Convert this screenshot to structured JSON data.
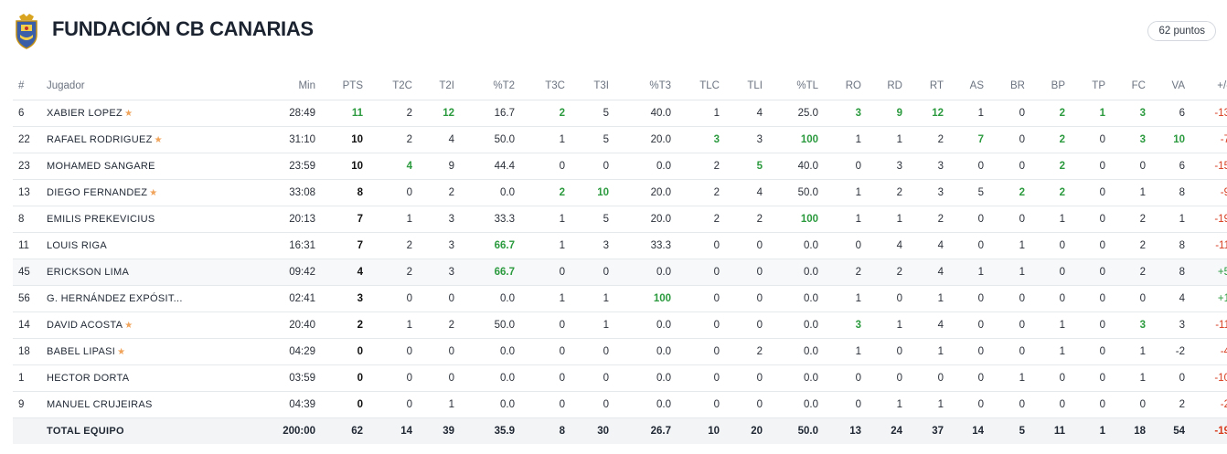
{
  "team": {
    "name": "FUNDACIÓN CB CANARIAS",
    "points_badge": "62 puntos"
  },
  "colors": {
    "positive": "#2b9a3e",
    "negative": "#d73a1c",
    "star": "#f0a35a"
  },
  "icons": {
    "crest": "team-crest-icon",
    "captain": "star-icon"
  },
  "columns": [
    "#",
    "Jugador",
    "Min",
    "PTS",
    "T2C",
    "T2I",
    "%T2",
    "T3C",
    "T3I",
    "%T3",
    "TLC",
    "TLI",
    "%TL",
    "RO",
    "RD",
    "RT",
    "AS",
    "BR",
    "BP",
    "TP",
    "FC",
    "VA",
    "+/-"
  ],
  "players": [
    {
      "num": "6",
      "name": "XABIER LOPEZ",
      "star": true,
      "min": "28:49",
      "pts": "11",
      "t2c": "2",
      "t2i": "12",
      "p2": "16.7",
      "t3c": "2",
      "t3i": "5",
      "p3": "40.0",
      "tlc": "1",
      "tli": "4",
      "ptl": "25.0",
      "ro": "3",
      "rd": "9",
      "rt": "12",
      "as": "1",
      "br": "0",
      "bp": "2",
      "tp": "1",
      "fc": "3",
      "va": "6",
      "pm": "-13",
      "hi": [
        "pts",
        "t2i",
        "t3c",
        "ro",
        "rd",
        "rt",
        "bp",
        "tp",
        "fc"
      ]
    },
    {
      "num": "22",
      "name": "RAFAEL RODRIGUEZ",
      "star": true,
      "min": "31:10",
      "pts": "10",
      "t2c": "2",
      "t2i": "4",
      "p2": "50.0",
      "t3c": "1",
      "t3i": "5",
      "p3": "20.0",
      "tlc": "3",
      "tli": "3",
      "ptl": "100",
      "ro": "1",
      "rd": "1",
      "rt": "2",
      "as": "7",
      "br": "0",
      "bp": "2",
      "tp": "0",
      "fc": "3",
      "va": "10",
      "pm": "-7",
      "hi": [
        "tlc",
        "ptl",
        "as",
        "bp",
        "fc",
        "va"
      ]
    },
    {
      "num": "23",
      "name": "MOHAMED SANGARE",
      "star": false,
      "min": "23:59",
      "pts": "10",
      "t2c": "4",
      "t2i": "9",
      "p2": "44.4",
      "t3c": "0",
      "t3i": "0",
      "p3": "0.0",
      "tlc": "2",
      "tli": "5",
      "ptl": "40.0",
      "ro": "0",
      "rd": "3",
      "rt": "3",
      "as": "0",
      "br": "0",
      "bp": "2",
      "tp": "0",
      "fc": "0",
      "va": "6",
      "pm": "-15",
      "hi": [
        "t2c",
        "tli",
        "bp"
      ]
    },
    {
      "num": "13",
      "name": "DIEGO FERNANDEZ",
      "star": true,
      "min": "33:08",
      "pts": "8",
      "t2c": "0",
      "t2i": "2",
      "p2": "0.0",
      "t3c": "2",
      "t3i": "10",
      "p3": "20.0",
      "tlc": "2",
      "tli": "4",
      "ptl": "50.0",
      "ro": "1",
      "rd": "2",
      "rt": "3",
      "as": "5",
      "br": "2",
      "bp": "2",
      "tp": "0",
      "fc": "1",
      "va": "8",
      "pm": "-9",
      "hi": [
        "t3c",
        "t3i",
        "br",
        "bp"
      ]
    },
    {
      "num": "8",
      "name": "EMILIS PREKEVICIUS",
      "star": false,
      "min": "20:13",
      "pts": "7",
      "t2c": "1",
      "t2i": "3",
      "p2": "33.3",
      "t3c": "1",
      "t3i": "5",
      "p3": "20.0",
      "tlc": "2",
      "tli": "2",
      "ptl": "100",
      "ro": "1",
      "rd": "1",
      "rt": "2",
      "as": "0",
      "br": "0",
      "bp": "1",
      "tp": "0",
      "fc": "2",
      "va": "1",
      "pm": "-19",
      "hi": [
        "ptl"
      ]
    },
    {
      "num": "11",
      "name": "LOUIS RIGA",
      "star": false,
      "min": "16:31",
      "pts": "7",
      "t2c": "2",
      "t2i": "3",
      "p2": "66.7",
      "t3c": "1",
      "t3i": "3",
      "p3": "33.3",
      "tlc": "0",
      "tli": "0",
      "ptl": "0.0",
      "ro": "0",
      "rd": "4",
      "rt": "4",
      "as": "0",
      "br": "1",
      "bp": "0",
      "tp": "0",
      "fc": "2",
      "va": "8",
      "pm": "-11",
      "hi": [
        "p2"
      ]
    },
    {
      "num": "45",
      "name": "ERICKSON LIMA",
      "star": false,
      "min": "09:42",
      "pts": "4",
      "t2c": "2",
      "t2i": "3",
      "p2": "66.7",
      "t3c": "0",
      "t3i": "0",
      "p3": "0.0",
      "tlc": "0",
      "tli": "0",
      "ptl": "0.0",
      "ro": "2",
      "rd": "2",
      "rt": "4",
      "as": "1",
      "br": "1",
      "bp": "0",
      "tp": "0",
      "fc": "2",
      "va": "8",
      "pm": "+5",
      "hi": [
        "p2"
      ],
      "alt": true
    },
    {
      "num": "56",
      "name": "G. HERNÁNDEZ EXPÓSIT...",
      "star": false,
      "min": "02:41",
      "pts": "3",
      "t2c": "0",
      "t2i": "0",
      "p2": "0.0",
      "t3c": "1",
      "t3i": "1",
      "p3": "100",
      "tlc": "0",
      "tli": "0",
      "ptl": "0.0",
      "ro": "1",
      "rd": "0",
      "rt": "1",
      "as": "0",
      "br": "0",
      "bp": "0",
      "tp": "0",
      "fc": "0",
      "va": "4",
      "pm": "+1",
      "hi": [
        "p3"
      ]
    },
    {
      "num": "14",
      "name": "DAVID ACOSTA",
      "star": true,
      "min": "20:40",
      "pts": "2",
      "t2c": "1",
      "t2i": "2",
      "p2": "50.0",
      "t3c": "0",
      "t3i": "1",
      "p3": "0.0",
      "tlc": "0",
      "tli": "0",
      "ptl": "0.0",
      "ro": "3",
      "rd": "1",
      "rt": "4",
      "as": "0",
      "br": "0",
      "bp": "1",
      "tp": "0",
      "fc": "3",
      "va": "3",
      "pm": "-11",
      "hi": [
        "ro",
        "fc"
      ]
    },
    {
      "num": "18",
      "name": "BABEL LIPASI",
      "star": true,
      "min": "04:29",
      "pts": "0",
      "t2c": "0",
      "t2i": "0",
      "p2": "0.0",
      "t3c": "0",
      "t3i": "0",
      "p3": "0.0",
      "tlc": "0",
      "tli": "2",
      "ptl": "0.0",
      "ro": "1",
      "rd": "0",
      "rt": "1",
      "as": "0",
      "br": "0",
      "bp": "1",
      "tp": "0",
      "fc": "1",
      "va": "-2",
      "pm": "-4",
      "hi": []
    },
    {
      "num": "1",
      "name": "HECTOR DORTA",
      "star": false,
      "min": "03:59",
      "pts": "0",
      "t2c": "0",
      "t2i": "0",
      "p2": "0.0",
      "t3c": "0",
      "t3i": "0",
      "p3": "0.0",
      "tlc": "0",
      "tli": "0",
      "ptl": "0.0",
      "ro": "0",
      "rd": "0",
      "rt": "0",
      "as": "0",
      "br": "1",
      "bp": "0",
      "tp": "0",
      "fc": "1",
      "va": "0",
      "pm": "-10",
      "hi": []
    },
    {
      "num": "9",
      "name": "MANUEL CRUJEIRAS",
      "star": false,
      "min": "04:39",
      "pts": "0",
      "t2c": "0",
      "t2i": "1",
      "p2": "0.0",
      "t3c": "0",
      "t3i": "0",
      "p3": "0.0",
      "tlc": "0",
      "tli": "0",
      "ptl": "0.0",
      "ro": "0",
      "rd": "1",
      "rt": "1",
      "as": "0",
      "br": "0",
      "bp": "0",
      "tp": "0",
      "fc": "0",
      "va": "2",
      "pm": "-2",
      "hi": []
    }
  ],
  "total": {
    "num": "",
    "name": "TOTAL EQUIPO",
    "min": "200:00",
    "pts": "62",
    "t2c": "14",
    "t2i": "39",
    "p2": "35.9",
    "t3c": "8",
    "t3i": "30",
    "p3": "26.7",
    "tlc": "10",
    "tli": "20",
    "ptl": "50.0",
    "ro": "13",
    "rd": "24",
    "rt": "37",
    "as": "14",
    "br": "5",
    "bp": "11",
    "tp": "1",
    "fc": "18",
    "va": "54",
    "pm": "-19"
  }
}
